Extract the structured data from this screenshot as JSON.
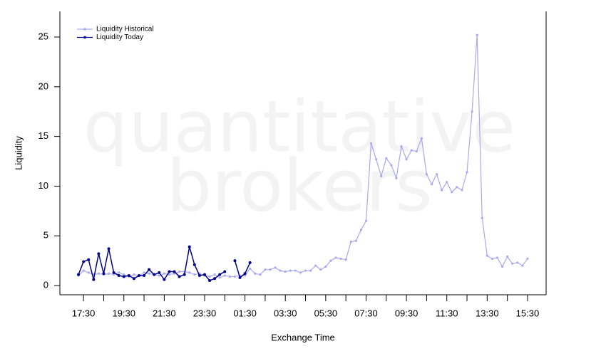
{
  "chart_data": {
    "type": "line",
    "watermark": [
      "quantitative",
      "brokers"
    ],
    "xlabel": "Exchange Time",
    "ylabel": "Liquidity",
    "x": [
      17.25,
      17.5,
      17.75,
      18,
      18.25,
      18.5,
      18.75,
      19,
      19.25,
      19.5,
      19.75,
      20,
      20.25,
      20.5,
      20.75,
      21,
      21.25,
      21.5,
      21.75,
      22,
      22.25,
      22.5,
      22.75,
      23,
      23.25,
      23.5,
      23.75,
      24,
      24.25,
      24.5,
      24.75,
      25,
      25.25,
      25.5,
      25.75,
      26,
      26.25,
      26.5,
      26.75,
      27,
      27.25,
      27.5,
      27.75,
      28,
      28.25,
      28.5,
      28.75,
      29,
      29.25,
      29.5,
      29.75,
      30,
      30.25,
      30.5,
      30.75,
      31,
      31.25,
      31.5,
      31.75,
      32,
      32.25,
      32.5,
      32.75,
      33,
      33.25,
      33.5,
      33.75,
      34,
      34.25,
      34.5,
      34.75,
      35,
      35.25,
      35.5,
      35.75,
      36,
      36.25,
      36.5,
      36.75,
      37,
      37.25,
      37.5,
      37.75,
      38,
      38.25,
      38.5,
      38.75,
      39,
      39.25,
      39.5
    ],
    "series": [
      {
        "name": "Liquidity Historical",
        "color": "#a9a9f2",
        "values": [
          1.0,
          1.5,
          1.3,
          1.1,
          1.2,
          1.1,
          1.2,
          1.1,
          1.3,
          1.1,
          0.9,
          1.1,
          1.0,
          1.3,
          1.2,
          1.1,
          1.0,
          1.2,
          1.1,
          1.2,
          1.4,
          1.4,
          1.3,
          1.1,
          1.2,
          1.0,
          0.9,
          1.1,
          0.8,
          1.0,
          0.9,
          0.9,
          1.0,
          1.0,
          1.7,
          1.2,
          1.1,
          1.6,
          1.6,
          1.8,
          1.5,
          1.4,
          1.5,
          1.5,
          1.3,
          1.5,
          1.5,
          2.0,
          1.6,
          1.9,
          2.5,
          2.8,
          2.7,
          2.6,
          4.4,
          4.5,
          5.6,
          6.5,
          14.3,
          12.7,
          11.0,
          12.8,
          12.1,
          10.8,
          14.0,
          12.7,
          13.6,
          13.5,
          14.8,
          11.2,
          10.2,
          11.2,
          9.6,
          10.4,
          9.4,
          9.9,
          9.6,
          11.4,
          17.5,
          25.2,
          6.8,
          3.0,
          2.7,
          2.8,
          1.9,
          2.9,
          2.2,
          2.3,
          2.0,
          2.7
        ]
      },
      {
        "name": "Liquidity Today",
        "color": "#00008b",
        "values": [
          1.1,
          2.4,
          2.6,
          0.6,
          3.2,
          1.2,
          3.7,
          1.3,
          1.0,
          0.9,
          1.0,
          0.7,
          1.0,
          1.0,
          1.6,
          1.1,
          1.3,
          0.6,
          1.4,
          1.4,
          0.9,
          1.1,
          3.9,
          2.1,
          1.0,
          1.1,
          0.5,
          0.7,
          1.1,
          1.4,
          null,
          2.5,
          0.8,
          1.2,
          2.3,
          null,
          null,
          null,
          null,
          null,
          null,
          null,
          null,
          null,
          null,
          null,
          null,
          null,
          null,
          null,
          null,
          null,
          null,
          null,
          null,
          null,
          null,
          null,
          null,
          null,
          null,
          null,
          null,
          null,
          null,
          null,
          null,
          null,
          null,
          null,
          null,
          null,
          null,
          null,
          null,
          null,
          null,
          null,
          null,
          null,
          null,
          null,
          null,
          null,
          null,
          null,
          null,
          null,
          null,
          null
        ]
      }
    ],
    "xlim": [
      16.33,
      40.42
    ],
    "xticks": [
      {
        "value": 17.5,
        "label": "17:30"
      },
      {
        "value": 19.5,
        "label": "19:30"
      },
      {
        "value": 21.5,
        "label": "21:30"
      },
      {
        "value": 23.5,
        "label": "23:30"
      },
      {
        "value": 25.5,
        "label": "01:30"
      },
      {
        "value": 27.5,
        "label": "03:30"
      },
      {
        "value": 29.5,
        "label": "05:30"
      },
      {
        "value": 31.5,
        "label": "07:30"
      },
      {
        "value": 33.5,
        "label": "09:30"
      },
      {
        "value": 35.5,
        "label": "11:30"
      },
      {
        "value": 37.5,
        "label": "13:30"
      },
      {
        "value": 39.5,
        "label": "15:30"
      }
    ],
    "xminorticks": [
      18.5,
      20.5,
      22.5,
      24.5,
      26.5,
      28.5,
      30.5,
      32.5,
      34.5,
      36.5,
      38.5
    ],
    "ylim": [
      -0.93,
      27.58
    ],
    "yticks": [
      0,
      5,
      10,
      15,
      20,
      25
    ],
    "legend": "top-left",
    "grid": false
  }
}
